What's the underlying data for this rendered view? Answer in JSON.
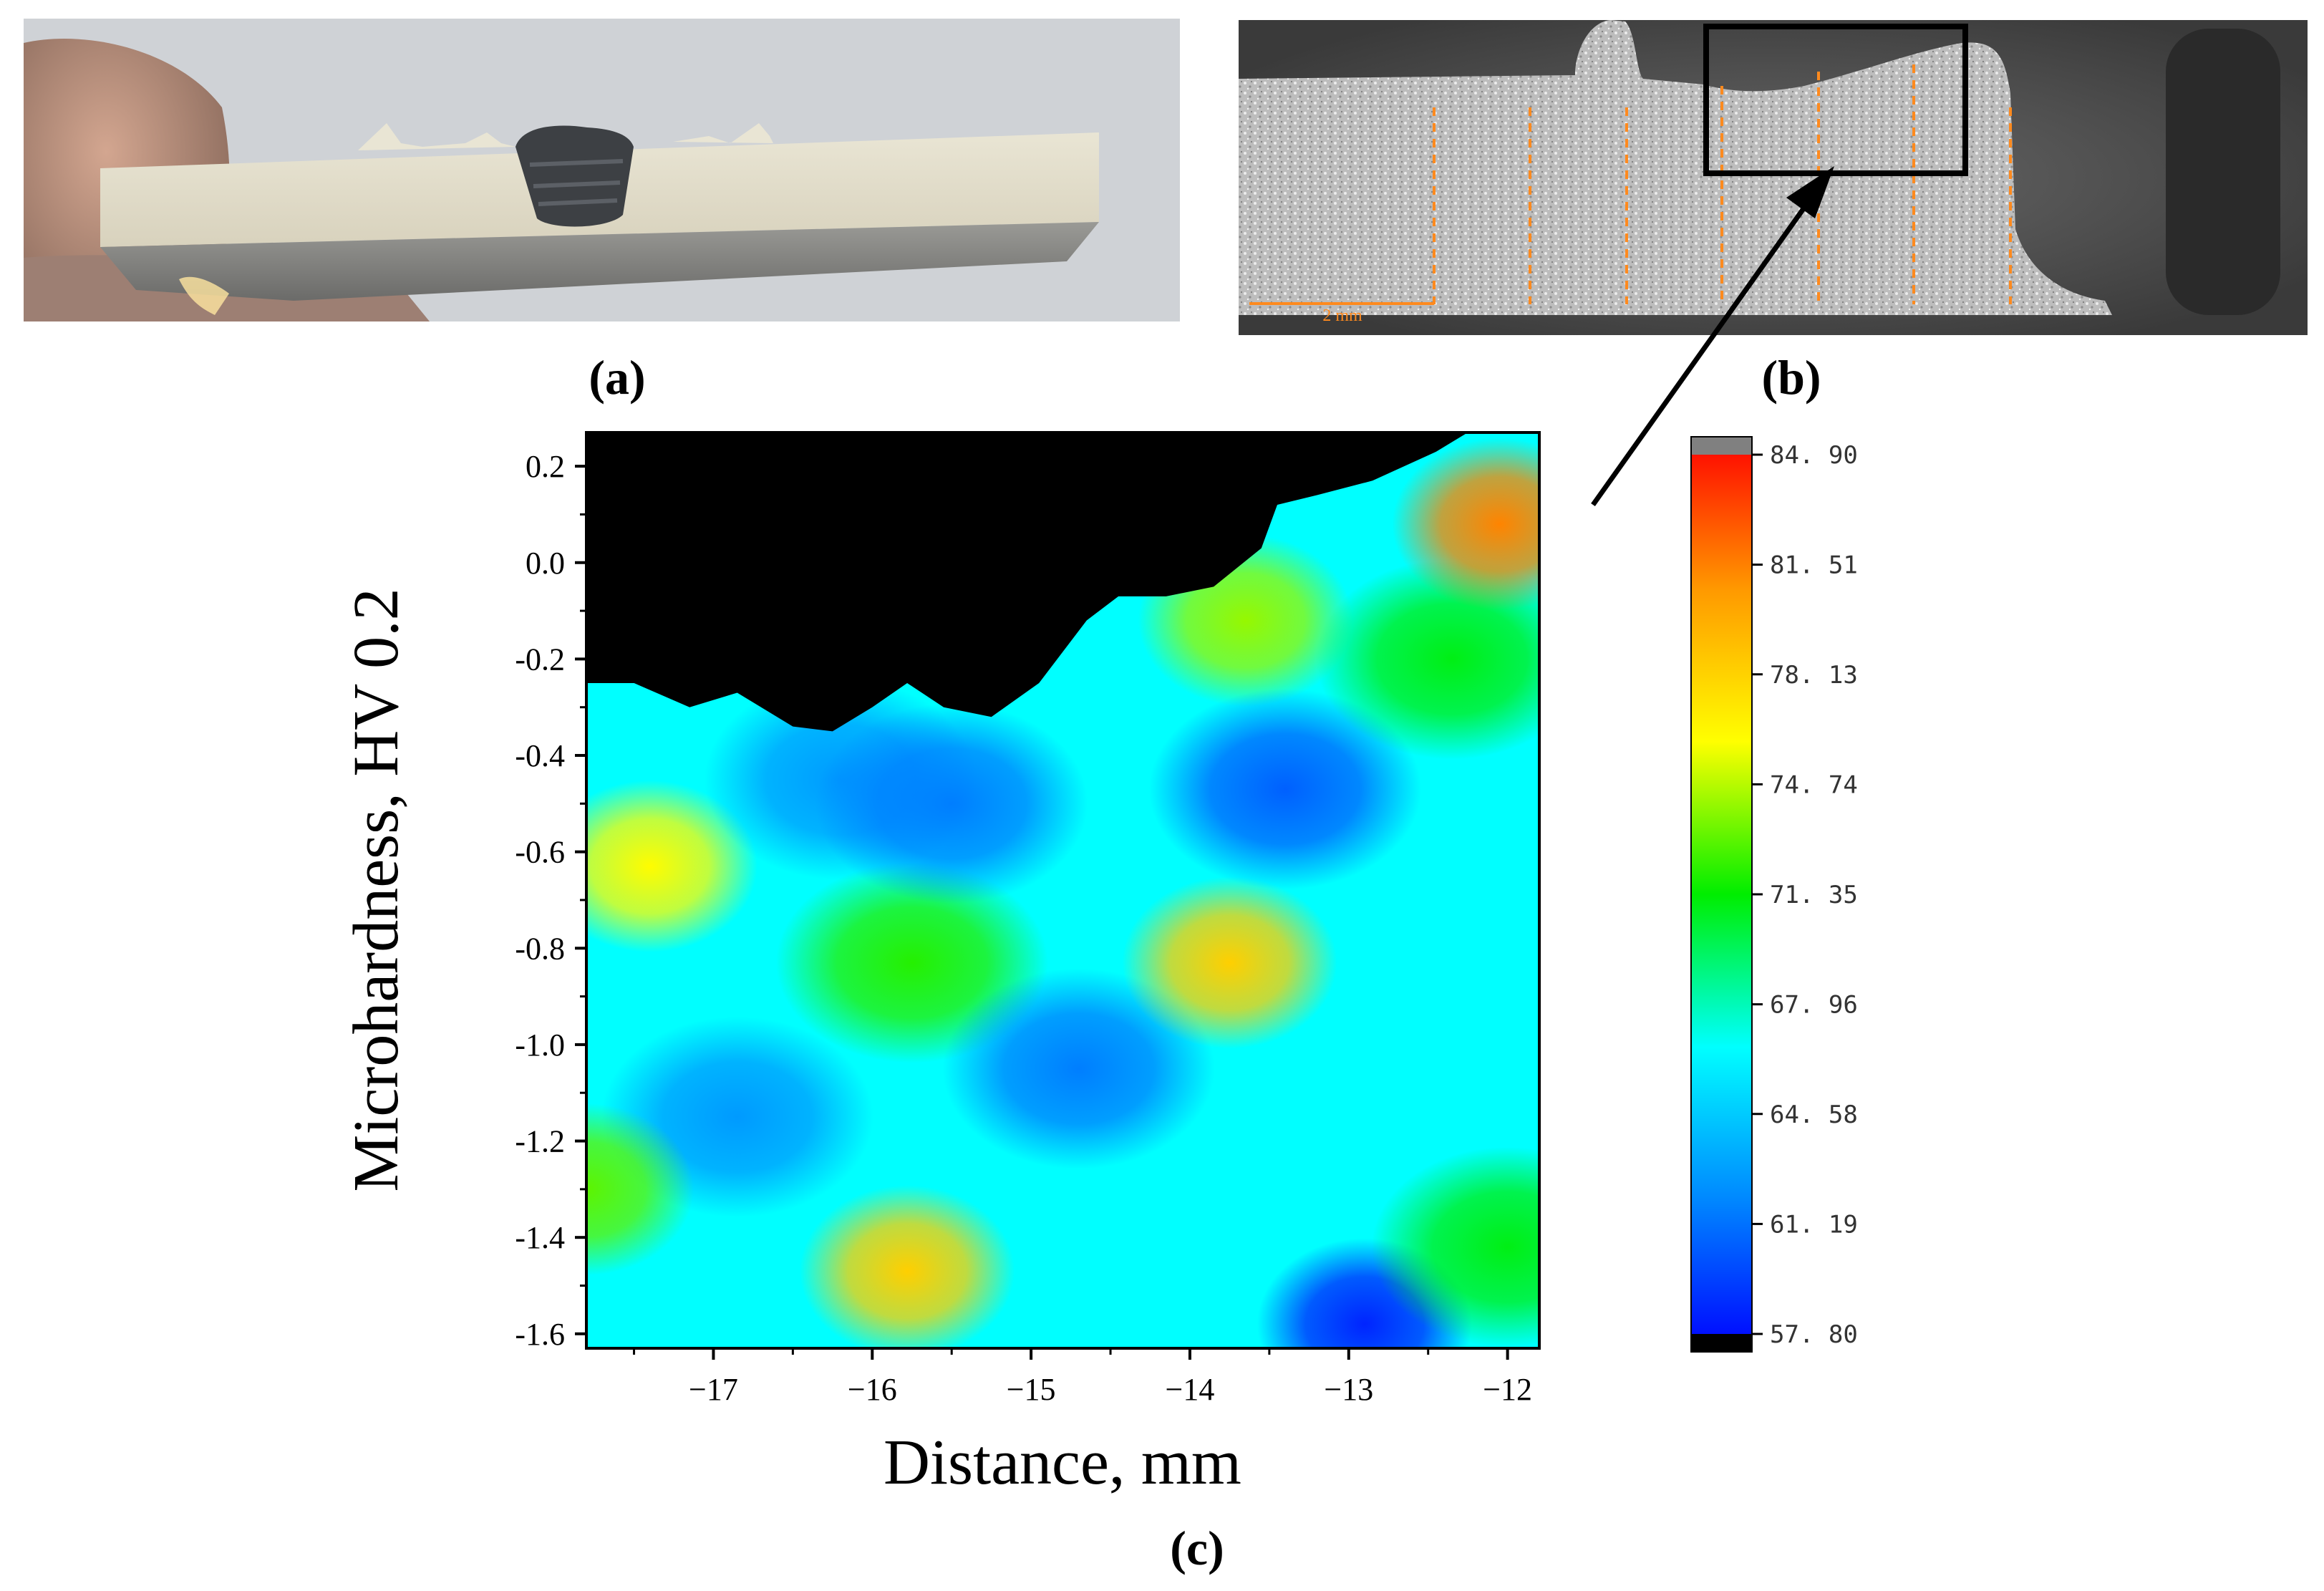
{
  "panels": {
    "a": {
      "label": "(a)"
    },
    "b": {
      "label": "(b)",
      "scale_bar_label": "2 mm"
    },
    "c": {
      "label": "(c)"
    }
  },
  "chart_data": {
    "type": "heatmap",
    "xlabel": "Distance, mm",
    "ylabel": "Microhardness, HV 0.2",
    "xlim": [
      -17.8,
      -11.8
    ],
    "ylim": [
      -1.63,
      0.27
    ],
    "x_ticks": [
      -17,
      -16,
      -15,
      -14,
      -13,
      -12
    ],
    "y_ticks": [
      0.2,
      0.0,
      -0.2,
      -0.4,
      -0.6,
      -0.8,
      -1.0,
      -1.2,
      -1.4,
      -1.6
    ],
    "x_tick_labels": [
      "−17",
      "−16",
      "−15",
      "−14",
      "−13",
      "−12"
    ],
    "y_tick_labels": [
      "0.2",
      "0.0",
      "-0.2",
      "-0.4",
      "-0.6",
      "-0.8",
      "-1.0",
      "-1.2",
      "-1.4",
      "-1.6"
    ],
    "colorbar": {
      "min": 57.8,
      "max": 84.9,
      "tick_labels": [
        "84. 90",
        "81. 51",
        "78. 13",
        "74. 74",
        "71. 35",
        "67. 96",
        "64. 58",
        "61. 19",
        "57. 80"
      ],
      "tick_values": [
        84.9,
        81.51,
        78.13,
        74.74,
        71.35,
        67.96,
        64.58,
        61.19,
        57.8
      ],
      "colormap": [
        "#000000",
        "#0000ff",
        "#0088ff",
        "#00ffff",
        "#00ee00",
        "#ffff00",
        "#ff9900",
        "#ff0000",
        "#808080"
      ]
    },
    "surface_boundary": {
      "x": [
        -17.8,
        -17.5,
        -17.15,
        -16.85,
        -16.5,
        -16.25,
        -16.0,
        -15.78,
        -15.55,
        -15.25,
        -14.95,
        -14.65,
        -14.45,
        -14.15,
        -13.85,
        -13.55,
        -13.45,
        -13.2,
        -12.85,
        -12.45,
        -12.25,
        -11.8
      ],
      "y": [
        -0.25,
        -0.25,
        -0.3,
        -0.27,
        -0.34,
        -0.35,
        -0.3,
        -0.25,
        -0.3,
        -0.32,
        -0.25,
        -0.12,
        -0.07,
        -0.07,
        -0.05,
        0.03,
        0.12,
        0.14,
        0.17,
        0.23,
        0.27,
        0.27
      ],
      "fill_color": "#000000"
    },
    "hardness_extremes": [
      {
        "x": -17.4,
        "y": -0.63,
        "value": 76
      },
      {
        "x": -16.85,
        "y": -1.15,
        "value": 63
      },
      {
        "x": -15.78,
        "y": -1.47,
        "value": 78
      },
      {
        "x": -15.75,
        "y": -0.83,
        "value": 72
      },
      {
        "x": -16.2,
        "y": -0.45,
        "value": 63
      },
      {
        "x": -15.5,
        "y": -0.5,
        "value": 62
      },
      {
        "x": -14.7,
        "y": -1.05,
        "value": 62
      },
      {
        "x": -13.75,
        "y": -0.83,
        "value": 78
      },
      {
        "x": -13.65,
        "y": -0.12,
        "value": 74
      },
      {
        "x": -13.4,
        "y": -0.47,
        "value": 61
      },
      {
        "x": -12.9,
        "y": -1.58,
        "value": 59
      },
      {
        "x": -12.35,
        "y": -0.2,
        "value": 71
      },
      {
        "x": -12.05,
        "y": 0.08,
        "value": 81
      },
      {
        "x": -12.0,
        "y": -1.42,
        "value": 71
      },
      {
        "x": -17.8,
        "y": -1.3,
        "value": 73
      }
    ]
  }
}
